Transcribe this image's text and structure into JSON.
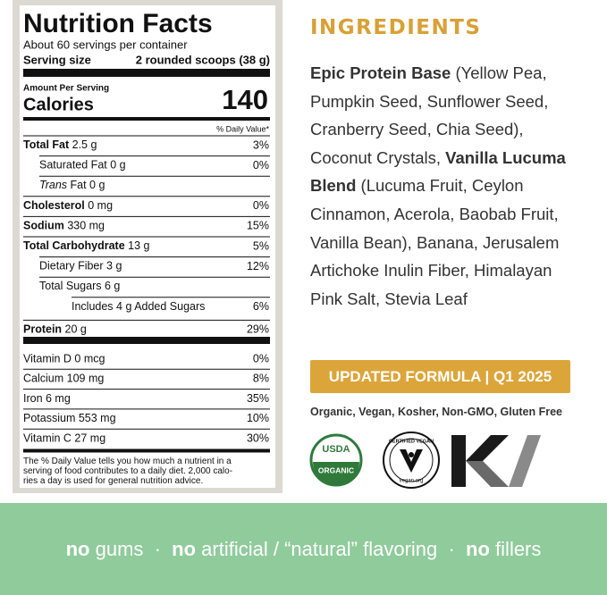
{
  "nutrition": {
    "title": "Nutrition Facts",
    "servings": "About 60 servings per container",
    "serving_size_label": "Serving size",
    "serving_size": "2 rounded scoops (38 g)",
    "amount_per_serving": "Amount Per Serving",
    "calories_label": "Calories",
    "calories": 140,
    "daily_value_header": "% Daily Value*",
    "rows": [
      {
        "parts": [
          {
            "text": "Total Fat",
            "bold": true
          },
          {
            "text": " 2.5 g"
          }
        ],
        "dv": "3%",
        "children": [
          {
            "parts": [
              {
                "text": "Saturated Fat 0 g"
              }
            ],
            "dv": "0%"
          },
          {
            "parts": [
              {
                "text": "Trans",
                "italic": true
              },
              {
                "text": " Fat 0 g"
              }
            ]
          }
        ]
      },
      {
        "parts": [
          {
            "text": "Cholesterol",
            "bold": true
          },
          {
            "text": " 0 mg"
          }
        ],
        "dv": "0%"
      },
      {
        "parts": [
          {
            "text": "Sodium",
            "bold": true
          },
          {
            "text": " 330 mg"
          }
        ],
        "dv": "15%"
      },
      {
        "parts": [
          {
            "text": "Total Carbohydrate",
            "bold": true
          },
          {
            "text": " 13 g"
          }
        ],
        "dv": "5%",
        "children": [
          {
            "parts": [
              {
                "text": "Dietary Fiber 3 g"
              }
            ],
            "dv": "12%"
          },
          {
            "parts": [
              {
                "text": "Total Sugars 6 g"
              }
            ],
            "children": [
              {
                "parts": [
                  {
                    "text": "Includes 4 g Added Sugars"
                  }
                ],
                "dv": "6%"
              }
            ]
          }
        ]
      },
      {
        "parts": [
          {
            "text": "Protein",
            "bold": true
          },
          {
            "text": " 20 g"
          }
        ],
        "dv": "29%"
      }
    ],
    "vitamins": [
      {
        "label": "Vitamin D  0 mcg",
        "dv": "0%"
      },
      {
        "label": "Calcium  109 mg",
        "dv": "8%"
      },
      {
        "label": "Iron  6 mg",
        "dv": "35%"
      },
      {
        "label": "Potassium  553 mg",
        "dv": "10%"
      },
      {
        "label": "Vitamin C  27 mg",
        "dv": "30%"
      }
    ],
    "footnote": [
      "The % Daily Value tells you how much a nutrient in a",
      "serving of food contributes to a daily diet. 2,000 calo-",
      "ries a day is used for general nutrition advice."
    ]
  },
  "ingredients": {
    "title": "INGREDIENTS",
    "parts": [
      {
        "text": "Epic Protein Base",
        "bold": true
      },
      {
        "text": " (Yellow Pea, Pumpkin Seed, Sunflower Seed, Cranberry Seed, Chia Seed), Coconut Crystals, "
      },
      {
        "text": "Vanilla Lucuma Blend",
        "bold": true
      },
      {
        "text": " (Lucuma Fruit, Ceylon Cinnamon, Acerola, Baobab Fruit, Vanilla Bean), Banana, Jerusalem Artichoke Inulin Fiber, Himalayan Pink Salt, Stevia Leaf"
      }
    ]
  },
  "banner": "UPDATED FORMULA | Q1 2025",
  "certifications": "Organic, Vegan, Kosher, Non-GMO, Gluten Free",
  "logos": {
    "usda_top": "USDA",
    "usda_bottom": "ORGANIC",
    "vegan_top": "CERTIFIED VEGAN",
    "vegan_bottom": "vegan.org"
  },
  "footer": [
    {
      "text": "no",
      "bold": true
    },
    {
      "text": " gums  ·  "
    },
    {
      "text": "no",
      "bold": true
    },
    {
      "text": " artificial / “natural” flavoring  ·  "
    },
    {
      "text": "no",
      "bold": true
    },
    {
      "text": " fillers"
    }
  ]
}
